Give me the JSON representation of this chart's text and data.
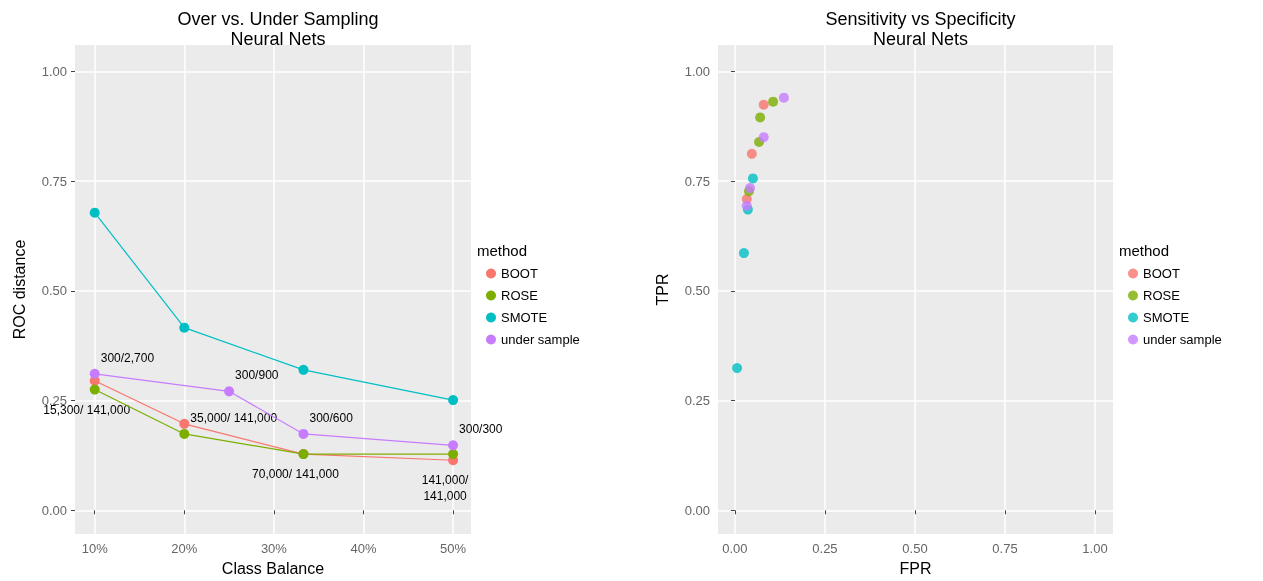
{
  "chart_data": [
    {
      "type": "line",
      "title": "Over vs. Under Sampling",
      "subtitle": "Neural Nets",
      "xlabel": "Class Balance",
      "ylabel": "ROC distance",
      "legend_title": "method",
      "legend": "right",
      "grid": true,
      "marker": "circle",
      "xlim": [
        7.8,
        52
      ],
      "ylim": [
        -0.054,
        1.06
      ],
      "xticks": [
        {
          "value": 10,
          "label": "10%"
        },
        {
          "value": 20,
          "label": "20%"
        },
        {
          "value": 30,
          "label": "30%"
        },
        {
          "value": 40,
          "label": "40%"
        },
        {
          "value": 50,
          "label": "50%"
        }
      ],
      "yticks": [
        {
          "value": 0,
          "label": "0.00"
        },
        {
          "value": 0.25,
          "label": "0.25"
        },
        {
          "value": 0.5,
          "label": "0.50"
        },
        {
          "value": 0.75,
          "label": "0.75"
        },
        {
          "value": 1,
          "label": "1.00"
        }
      ],
      "series": [
        {
          "name": "BOOT",
          "color": "#f8766d",
          "x": [
            10,
            20,
            33.3,
            50
          ],
          "values": [
            0.295,
            0.197,
            0.128,
            0.114
          ]
        },
        {
          "name": "ROSE",
          "color": "#7cae00",
          "x": [
            10,
            20,
            33.3,
            50
          ],
          "values": [
            0.275,
            0.174,
            0.128,
            0.128
          ]
        },
        {
          "name": "SMOTE",
          "color": "#00bfc4",
          "x": [
            10,
            20,
            33.3,
            50
          ],
          "values": [
            0.678,
            0.416,
            0.32,
            0.251
          ]
        },
        {
          "name": "under sample",
          "color": "#c77cff",
          "x": [
            10,
            25,
            33.3,
            50
          ],
          "values": [
            0.311,
            0.271,
            0.174,
            0.148
          ]
        }
      ],
      "annotations": [
        {
          "text": "300/2,700",
          "x": 10,
          "y": 0.311
        },
        {
          "text": "300/900",
          "x": 25,
          "y": 0.271
        },
        {
          "text": "300/600",
          "x": 33.3,
          "y": 0.174
        },
        {
          "text": "300/300",
          "x": 50,
          "y": 0.148
        },
        {
          "text": "15,300/ 141,000",
          "x": 10,
          "y": 0.275
        },
        {
          "text": "35,000/ 141,000",
          "x": 20,
          "y": 0.174
        },
        {
          "text": "70,000/ 141,000",
          "x": 33.3,
          "y": 0.128
        },
        {
          "text": "141,000/\n141,000",
          "x": 50,
          "y": 0.114
        }
      ]
    },
    {
      "type": "scatter",
      "title": "Sensitivity vs Specificity",
      "subtitle": "Neural Nets",
      "xlabel": "FPR",
      "ylabel": "TPR",
      "legend_title": "method",
      "legend": "right",
      "grid": true,
      "marker": "circle",
      "xlim": [
        -0.047,
        1.05
      ],
      "ylim": [
        -0.054,
        1.06
      ],
      "xticks": [
        {
          "value": 0,
          "label": "0.00"
        },
        {
          "value": 0.25,
          "label": "0.25"
        },
        {
          "value": 0.5,
          "label": "0.50"
        },
        {
          "value": 0.75,
          "label": "0.75"
        },
        {
          "value": 1,
          "label": "1.00"
        }
      ],
      "yticks": [
        {
          "value": 0,
          "label": "0.00"
        },
        {
          "value": 0.25,
          "label": "0.25"
        },
        {
          "value": 0.5,
          "label": "0.50"
        },
        {
          "value": 0.75,
          "label": "0.75"
        },
        {
          "value": 1,
          "label": "1.00"
        }
      ],
      "series": [
        {
          "name": "BOOT",
          "color": "#f8766d",
          "x": [
            0.08,
            0.047,
            0.033
          ],
          "values": [
            0.924,
            0.812,
            0.709
          ]
        },
        {
          "name": "ROSE",
          "color": "#7cae00",
          "x": [
            0.106,
            0.07,
            0.067,
            0.039
          ],
          "values": [
            0.931,
            0.895,
            0.839,
            0.727
          ]
        },
        {
          "name": "SMOTE",
          "color": "#00bfc4",
          "x": [
            0.05,
            0.036,
            0.025,
            0.006
          ],
          "values": [
            0.756,
            0.685,
            0.586,
            0.324
          ]
        },
        {
          "name": "under sample",
          "color": "#c77cff",
          "x": [
            0.136,
            0.08,
            0.042,
            0.033
          ],
          "values": [
            0.94,
            0.85,
            0.734,
            0.694
          ]
        }
      ]
    }
  ]
}
